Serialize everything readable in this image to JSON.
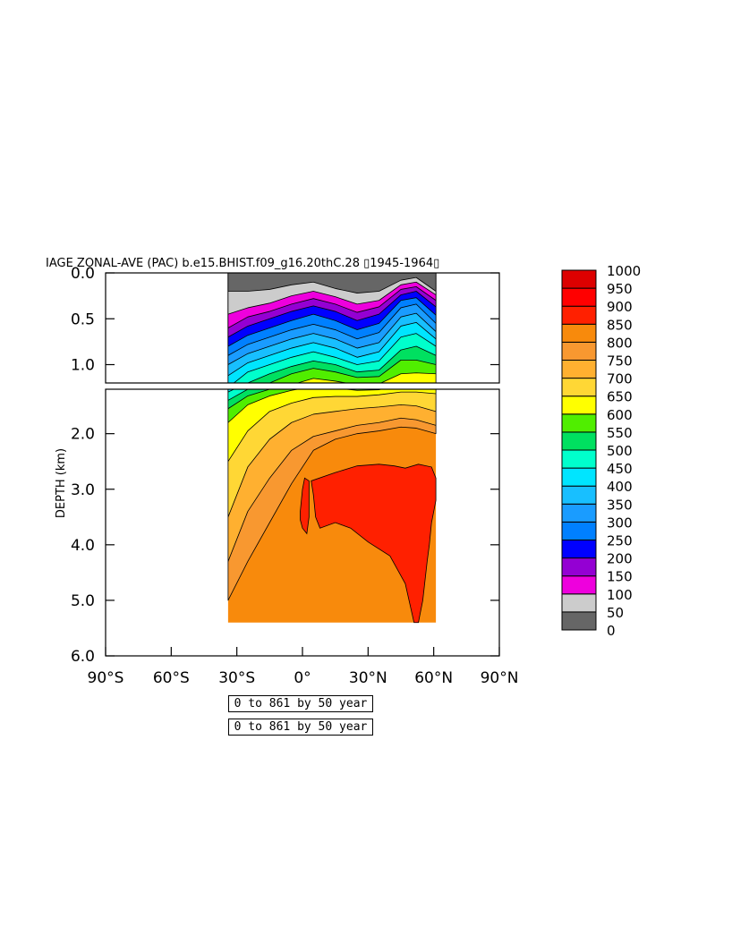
{
  "chart_data": {
    "type": "heatmap",
    "title": "IAGE ZONAL-AVE (PAC) b.e15.BHIST.f09_g16.20thC.28 ▯1945-1964▯",
    "ylabel": "DEPTH (km)",
    "xlabel": "",
    "x_ticks": [
      "90°S",
      "60°S",
      "30°S",
      "0°",
      "30°N",
      "60°N",
      "90°N"
    ],
    "x_tick_values": [
      -90,
      -60,
      -30,
      0,
      30,
      60,
      90
    ],
    "xlim": [
      -90,
      90
    ],
    "upper_panel": {
      "ylim": [
        0.0,
        1.2
      ],
      "y_ticks": [
        "0.0",
        "0.5",
        "1.0"
      ],
      "y_tick_values": [
        0.0,
        0.5,
        1.0
      ]
    },
    "lower_panel": {
      "ylim": [
        1.2,
        6.0
      ],
      "y_ticks": [
        "2.0",
        "3.0",
        "4.0",
        "5.0",
        "6.0"
      ],
      "y_tick_values": [
        2.0,
        3.0,
        4.0,
        5.0,
        6.0
      ]
    },
    "data_domain": {
      "lon_min": -34,
      "lon_max": 61,
      "bottom_depth_km": 5.4
    },
    "levels": [
      0,
      50,
      100,
      150,
      200,
      250,
      300,
      350,
      400,
      450,
      500,
      550,
      600,
      650,
      700,
      750,
      800,
      850,
      900,
      950,
      1000
    ],
    "colorbar_labels": [
      "1000",
      "950",
      "900",
      "850",
      "800",
      "750",
      "700",
      "650",
      "600",
      "550",
      "500",
      "450",
      "400",
      "350",
      "300",
      "250",
      "200",
      "150",
      "100",
      "50",
      "0"
    ],
    "colors": [
      "#666666",
      "#cccccc",
      "#ee00dd",
      "#9400d3",
      "#0000ff",
      "#0080ff",
      "#1a9cff",
      "#18bfff",
      "#00e5ff",
      "#00ffcc",
      "#00e060",
      "#50ee00",
      "#ffff00",
      "#ffd735",
      "#ffb030",
      "#f89830",
      "#f88a0c",
      "#ff2000",
      "#ff0000",
      "#dd0000"
    ],
    "contour_boundaries": {
      "lat": [
        -34,
        -25,
        -15,
        -5,
        5,
        15,
        25,
        35,
        45,
        52,
        61
      ],
      "depth_km_per_level": [
        [
          0.2,
          0.2,
          0.18,
          0.13,
          0.1,
          0.17,
          0.22,
          0.2,
          0.08,
          0.05,
          0.2
        ],
        [
          0.45,
          0.38,
          0.33,
          0.25,
          0.2,
          0.26,
          0.34,
          0.3,
          0.13,
          0.1,
          0.24
        ],
        [
          0.6,
          0.48,
          0.42,
          0.34,
          0.28,
          0.34,
          0.43,
          0.37,
          0.18,
          0.15,
          0.3
        ],
        [
          0.7,
          0.58,
          0.5,
          0.42,
          0.36,
          0.42,
          0.52,
          0.45,
          0.24,
          0.2,
          0.37
        ],
        [
          0.8,
          0.68,
          0.6,
          0.52,
          0.45,
          0.52,
          0.62,
          0.55,
          0.3,
          0.27,
          0.46
        ],
        [
          0.9,
          0.78,
          0.7,
          0.62,
          0.56,
          0.62,
          0.72,
          0.65,
          0.38,
          0.34,
          0.55
        ],
        [
          1.0,
          0.88,
          0.8,
          0.72,
          0.66,
          0.72,
          0.82,
          0.76,
          0.48,
          0.44,
          0.64
        ],
        [
          1.12,
          0.98,
          0.9,
          0.82,
          0.76,
          0.82,
          0.92,
          0.86,
          0.58,
          0.54,
          0.72
        ],
        [
          1.25,
          1.08,
          1.0,
          0.92,
          0.86,
          0.92,
          1.0,
          0.96,
          0.7,
          0.66,
          0.8
        ],
        [
          1.4,
          1.2,
          1.1,
          1.02,
          0.96,
          1.0,
          1.08,
          1.06,
          0.84,
          0.8,
          0.9
        ],
        [
          1.55,
          1.32,
          1.2,
          1.1,
          1.04,
          1.08,
          1.14,
          1.13,
          0.95,
          0.95,
          1.0
        ],
        [
          1.8,
          1.48,
          1.32,
          1.22,
          1.15,
          1.18,
          1.22,
          1.21,
          1.1,
          1.09,
          1.1
        ],
        [
          2.5,
          1.95,
          1.6,
          1.45,
          1.35,
          1.33,
          1.33,
          1.3,
          1.25,
          1.25,
          1.28
        ],
        [
          3.5,
          2.6,
          2.1,
          1.8,
          1.65,
          1.6,
          1.55,
          1.52,
          1.48,
          1.5,
          1.6
        ],
        [
          4.3,
          3.4,
          2.8,
          2.3,
          2.05,
          1.95,
          1.85,
          1.8,
          1.72,
          1.75,
          1.85
        ],
        [
          5.0,
          4.3,
          3.6,
          2.9,
          2.3,
          2.1,
          2.0,
          1.95,
          1.88,
          1.9,
          2.0
        ]
      ]
    },
    "red_core_polygon": [
      [
        4,
        2.85
      ],
      [
        15,
        2.7
      ],
      [
        25,
        2.58
      ],
      [
        35,
        2.55
      ],
      [
        42,
        2.58
      ],
      [
        47,
        2.62
      ],
      [
        53,
        2.55
      ],
      [
        59,
        2.6
      ],
      [
        61,
        2.8
      ],
      [
        61,
        3.2
      ],
      [
        59,
        3.6
      ],
      [
        58,
        4.0
      ],
      [
        57,
        4.3
      ],
      [
        55,
        5.0
      ],
      [
        53,
        5.4
      ],
      [
        51,
        5.4
      ],
      [
        47,
        4.7
      ],
      [
        40,
        4.2
      ],
      [
        30,
        3.95
      ],
      [
        22,
        3.7
      ],
      [
        15,
        3.6
      ],
      [
        8,
        3.7
      ],
      [
        6,
        3.5
      ],
      [
        5,
        3.1
      ]
    ],
    "red_small_polygon": [
      [
        -1,
        3.4
      ],
      [
        0,
        3.0
      ],
      [
        1,
        2.8
      ],
      [
        3,
        2.85
      ],
      [
        3,
        3.5
      ],
      [
        2,
        3.8
      ],
      [
        0,
        3.7
      ],
      [
        -1,
        3.55
      ]
    ],
    "info_boxes": [
      "0 to 861 by 50 year",
      "0 to 861 by 50 year"
    ]
  }
}
